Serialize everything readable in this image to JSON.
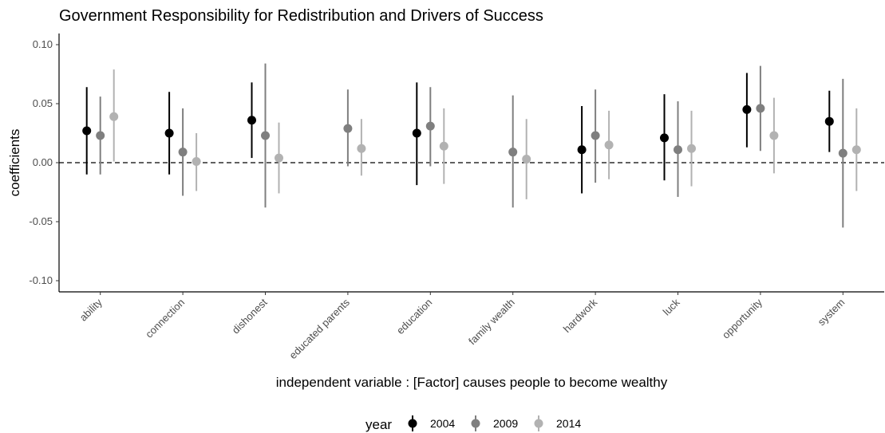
{
  "chart_data": {
    "type": "scatter",
    "title": "Government Responsibility for Redistribution and Drivers of Success",
    "xlabel": "independent variable : [Factor] causes people to become wealthy",
    "ylabel": "coefficients",
    "ylim": [
      -0.11,
      0.11
    ],
    "yticks": [
      "0.10",
      "0.05",
      "0.00",
      "-0.05",
      "-0.10"
    ],
    "ytick_values": [
      0.1,
      0.05,
      0.0,
      -0.05,
      -0.1
    ],
    "reference_line": 0,
    "categories": [
      "ability",
      "connection",
      "dishonest",
      "educated parents",
      "education",
      "family wealth",
      "hardwork",
      "luck",
      "opportunity",
      "system"
    ],
    "legend": {
      "title": "year",
      "position": "bottom"
    },
    "series": [
      {
        "name": "2004",
        "color": "#000000",
        "estimates": [
          0.027,
          0.025,
          0.036,
          null,
          0.025,
          null,
          0.011,
          0.021,
          0.045,
          0.035
        ],
        "lower": [
          -0.01,
          -0.01,
          0.004,
          null,
          -0.019,
          null,
          -0.026,
          -0.015,
          0.013,
          0.009
        ],
        "upper": [
          0.064,
          0.06,
          0.068,
          null,
          0.068,
          null,
          0.048,
          0.058,
          0.076,
          0.061
        ]
      },
      {
        "name": "2009",
        "color": "#7f7f7f",
        "estimates": [
          0.023,
          0.009,
          0.023,
          0.029,
          0.031,
          0.009,
          0.023,
          0.011,
          0.046,
          0.008
        ],
        "lower": [
          -0.01,
          -0.028,
          -0.038,
          -0.003,
          -0.003,
          -0.038,
          -0.017,
          -0.029,
          0.01,
          -0.055
        ],
        "upper": [
          0.056,
          0.046,
          0.084,
          0.062,
          0.064,
          0.057,
          0.062,
          0.052,
          0.082,
          0.071
        ]
      },
      {
        "name": "2014",
        "color": "#b2b2b2",
        "estimates": [
          0.039,
          0.001,
          0.004,
          0.012,
          0.014,
          0.003,
          0.015,
          0.012,
          0.023,
          0.011
        ],
        "lower": [
          0.001,
          -0.024,
          -0.026,
          -0.011,
          -0.018,
          -0.031,
          -0.014,
          -0.02,
          -0.009,
          -0.024
        ],
        "upper": [
          0.079,
          0.025,
          0.034,
          0.037,
          0.046,
          0.037,
          0.044,
          0.044,
          0.055,
          0.046
        ]
      }
    ]
  }
}
